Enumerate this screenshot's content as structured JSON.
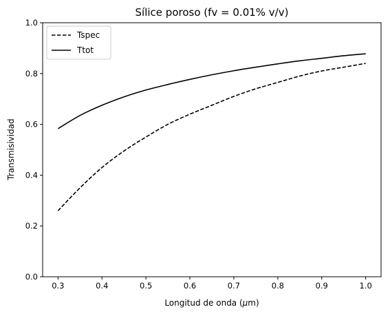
{
  "chart_data": {
    "type": "line",
    "title": "Sílice poroso (fv = 0.01% v/v)",
    "xlabel_main": "Longitud de onda (",
    "xlabel_mu": "μ",
    "xlabel_unit": "m)",
    "ylabel": "Transmisividad",
    "xlim": [
      0.265,
      1.035
    ],
    "ylim": [
      0.0,
      1.0
    ],
    "xticks": [
      "0.3",
      "0.4",
      "0.5",
      "0.6",
      "0.7",
      "0.8",
      "0.9",
      "1.0"
    ],
    "yticks": [
      "0.0",
      "0.2",
      "0.4",
      "0.6",
      "0.8",
      "1.0"
    ],
    "grid": false,
    "legend_position": "top-left",
    "x": [
      0.3,
      0.35,
      0.4,
      0.45,
      0.5,
      0.55,
      0.6,
      0.65,
      0.7,
      0.75,
      0.8,
      0.85,
      0.9,
      0.95,
      1.0
    ],
    "series": [
      {
        "name": "Tspec",
        "style": "dashed",
        "color": "#000000",
        "values": [
          0.26,
          0.35,
          0.43,
          0.495,
          0.55,
          0.6,
          0.64,
          0.675,
          0.71,
          0.74,
          0.765,
          0.79,
          0.81,
          0.825,
          0.84
        ]
      },
      {
        "name": "Ttot",
        "style": "solid",
        "color": "#000000",
        "values": [
          0.583,
          0.635,
          0.675,
          0.708,
          0.735,
          0.757,
          0.777,
          0.795,
          0.811,
          0.825,
          0.838,
          0.85,
          0.86,
          0.87,
          0.878
        ]
      }
    ]
  }
}
